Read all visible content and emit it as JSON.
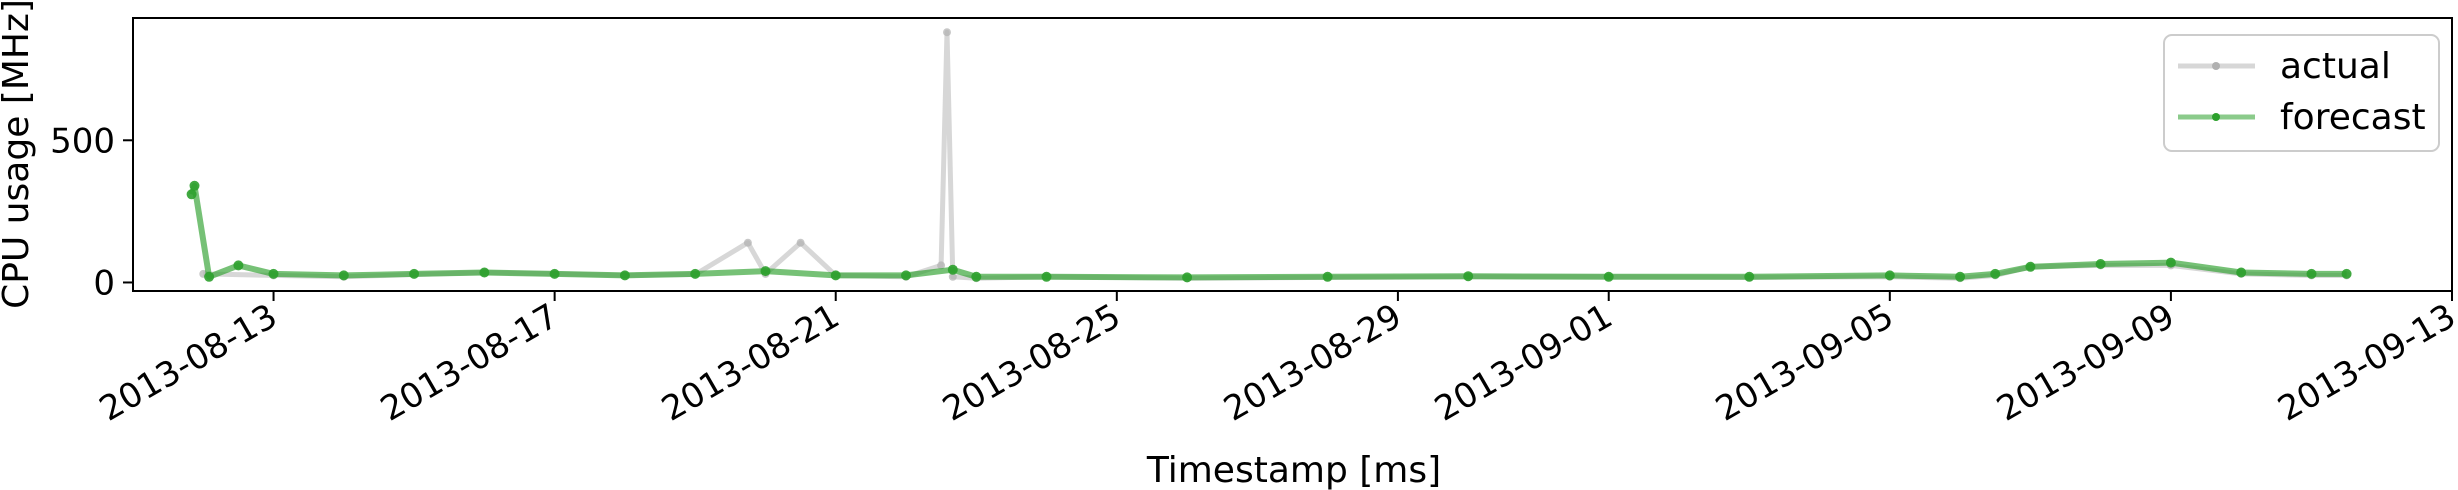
{
  "chart_data": {
    "type": "line",
    "title": "",
    "xlabel": "Timestamp [ms]",
    "ylabel": "CPU usage [MHz]",
    "x_range": [
      "2013-08-11",
      "2013-09-13"
    ],
    "ylim": [
      -30,
      930
    ],
    "y_ticks": [
      0,
      500
    ],
    "x_ticks": [
      "2013-08-13",
      "2013-08-17",
      "2013-08-21",
      "2013-08-25",
      "2013-08-29",
      "2013-09-01",
      "2013-09-05",
      "2013-09-09",
      "2013-09-13"
    ],
    "grid": false,
    "legend_position": "top-right",
    "series": [
      {
        "name": "actual",
        "color": "#b0b0b0",
        "x": [
          "2013-08-12",
          "2013-08-13",
          "2013-08-14",
          "2013-08-15",
          "2013-08-16",
          "2013-08-17",
          "2013-08-18",
          "2013-08-19",
          "2013-08-19T18:00",
          "2013-08-20",
          "2013-08-20T12:00",
          "2013-08-21",
          "2013-08-22",
          "2013-08-22T12:00",
          "2013-08-22T14:00",
          "2013-08-22T16:00",
          "2013-08-23",
          "2013-08-24",
          "2013-08-26",
          "2013-08-28",
          "2013-08-30",
          "2013-09-01",
          "2013-09-03",
          "2013-09-05",
          "2013-09-06",
          "2013-09-06T12:00",
          "2013-09-07",
          "2013-09-08",
          "2013-09-09",
          "2013-09-10",
          "2013-09-11",
          "2013-09-11T12:00"
        ],
        "values": [
          30,
          25,
          20,
          28,
          35,
          30,
          25,
          28,
          140,
          30,
          140,
          25,
          20,
          60,
          880,
          20,
          15,
          20,
          15,
          18,
          20,
          20,
          18,
          20,
          15,
          25,
          55,
          60,
          60,
          30,
          25,
          25
        ]
      },
      {
        "name": "forecast",
        "color": "#2ca02c",
        "x": [
          "2013-08-11T20:00",
          "2013-08-11T21:00",
          "2013-08-12T02:00",
          "2013-08-12T12:00",
          "2013-08-13",
          "2013-08-14",
          "2013-08-15",
          "2013-08-16",
          "2013-08-17",
          "2013-08-18",
          "2013-08-19",
          "2013-08-20",
          "2013-08-21",
          "2013-08-22",
          "2013-08-22T16:00",
          "2013-08-23",
          "2013-08-24",
          "2013-08-26",
          "2013-08-28",
          "2013-08-30",
          "2013-09-01",
          "2013-09-03",
          "2013-09-05",
          "2013-09-06",
          "2013-09-06T12:00",
          "2013-09-07",
          "2013-09-08",
          "2013-09-09",
          "2013-09-10",
          "2013-09-11",
          "2013-09-11T12:00"
        ],
        "values": [
          310,
          340,
          20,
          60,
          30,
          25,
          30,
          35,
          30,
          25,
          30,
          40,
          25,
          25,
          45,
          20,
          20,
          18,
          20,
          22,
          20,
          20,
          25,
          20,
          30,
          55,
          65,
          70,
          35,
          30,
          30
        ]
      }
    ]
  }
}
